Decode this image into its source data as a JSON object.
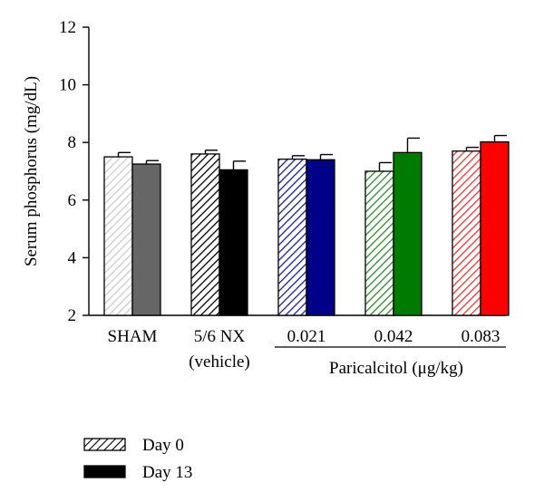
{
  "chart_data": {
    "type": "bar",
    "ylabel": "Serum phosphorus (mg/dL)",
    "ylim": [
      2,
      12
    ],
    "yticks": [
      2,
      4,
      6,
      8,
      10,
      12
    ],
    "grid": false,
    "groups": [
      {
        "label": "SHAM",
        "label2": "",
        "day0": {
          "value": 7.5,
          "err": 0.15,
          "color": "#cccccc"
        },
        "day13": {
          "value": 7.25,
          "err": 0.12,
          "color": "#666666"
        }
      },
      {
        "label": "5/6 NX",
        "label2": "(vehicle)",
        "day0": {
          "value": 7.6,
          "err": 0.13,
          "color": "#000000"
        },
        "day13": {
          "value": 7.05,
          "err": 0.3,
          "color": "#000000"
        }
      },
      {
        "label": "0.021",
        "label2": "",
        "day0": {
          "value": 7.42,
          "err": 0.12,
          "color": "#1a1a99"
        },
        "day13": {
          "value": 7.4,
          "err": 0.18,
          "color": "#000088"
        }
      },
      {
        "label": "0.042",
        "label2": "",
        "day0": {
          "value": 7.0,
          "err": 0.3,
          "color": "#2a8a2a"
        },
        "day13": {
          "value": 7.65,
          "err": 0.5,
          "color": "#007a00"
        }
      },
      {
        "label": "0.083",
        "label2": "",
        "day0": {
          "value": 7.7,
          "err": 0.13,
          "color": "#ee3333"
        },
        "day13": {
          "value": 8.02,
          "err": 0.22,
          "color": "#ff0000"
        }
      }
    ],
    "group_axis_label": "Paricalcitol (μg/kg)",
    "legend": [
      {
        "name": "Day 0",
        "pattern": "hatched"
      },
      {
        "name": "Day 13",
        "pattern": "solid"
      }
    ],
    "legend_position": "bottom-left"
  }
}
